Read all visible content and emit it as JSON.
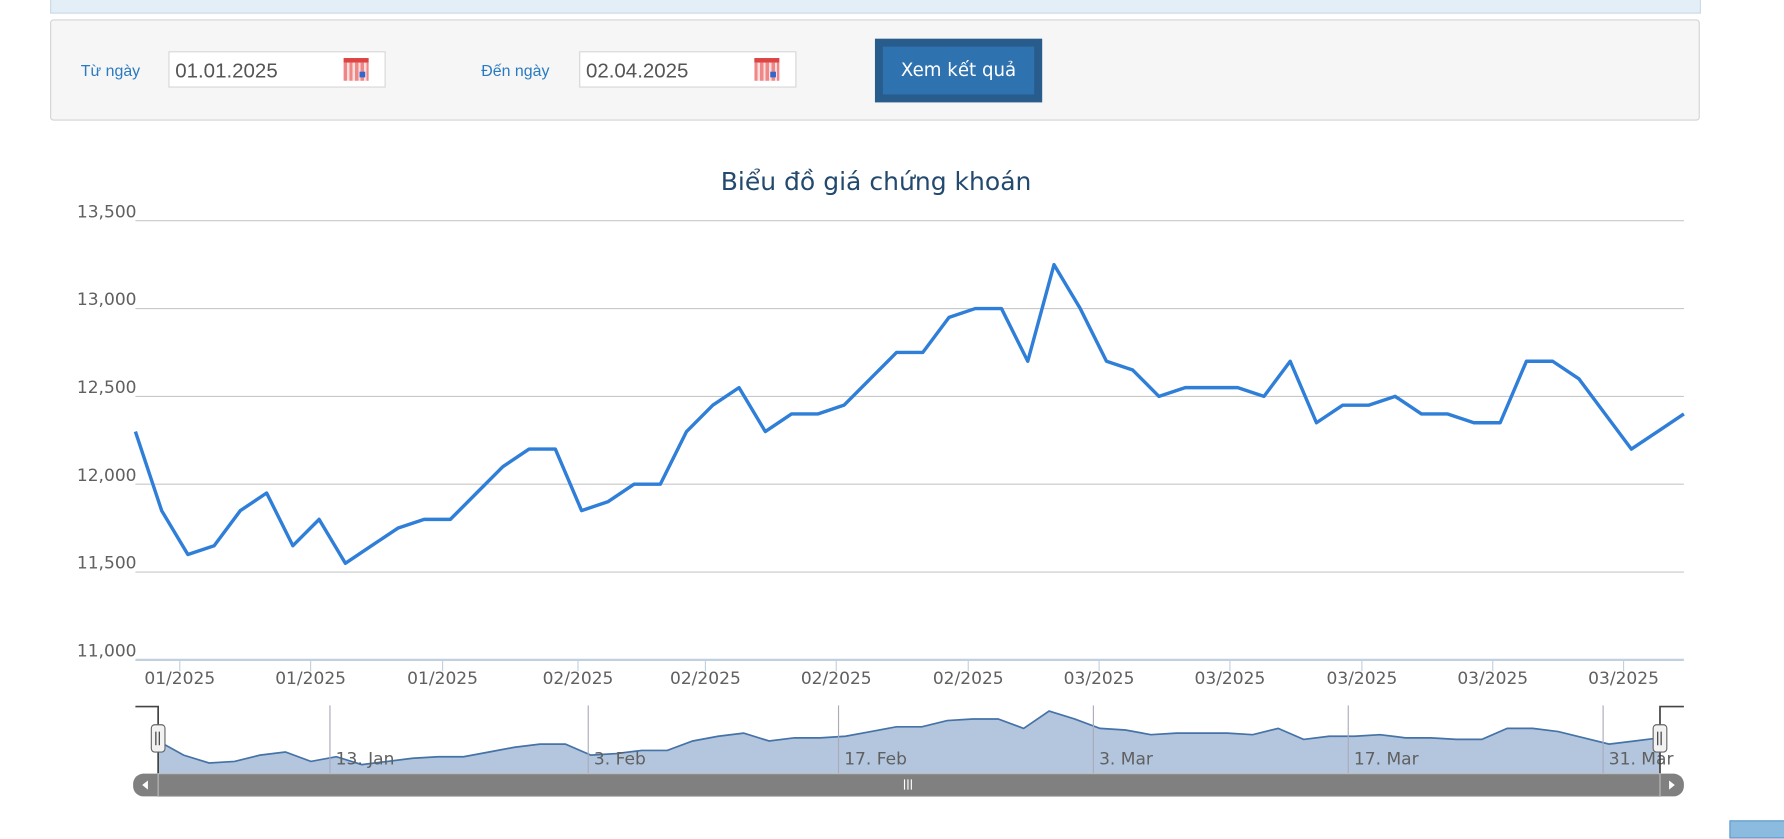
{
  "filter": {
    "from_label": "Từ ngày",
    "from_value": "01.01.2025",
    "to_label": "Đến ngày",
    "to_value": "02.04.2025",
    "submit_label": "Xem kết quả",
    "calendar_icon": "calendar-icon"
  },
  "chart_data": {
    "type": "line",
    "title": "Biểu đồ giá chứng khoán",
    "color": "#2f7ed8",
    "ylim": [
      11000,
      13500
    ],
    "y_ticks": [
      "13,500",
      "13,000",
      "12,500",
      "12,000",
      "11,500",
      "11,000"
    ],
    "y_tick_values": [
      13500,
      13000,
      12500,
      12000,
      11500,
      11000
    ],
    "x_tick_labels": [
      "01/2025",
      "01/2025",
      "01/2025",
      "02/2025",
      "02/2025",
      "02/2025",
      "02/2025",
      "03/2025",
      "03/2025",
      "03/2025",
      "03/2025",
      "03/2025"
    ],
    "grid": true,
    "values": [
      12300,
      11850,
      11600,
      11650,
      11850,
      11950,
      11650,
      11800,
      11550,
      11650,
      11750,
      11800,
      11800,
      11950,
      12100,
      12200,
      12200,
      11850,
      11900,
      12000,
      12000,
      12300,
      12450,
      12550,
      12300,
      12400,
      12400,
      12450,
      12600,
      12750,
      12750,
      12950,
      13000,
      13000,
      12700,
      13250,
      13000,
      12700,
      12650,
      12500,
      12550,
      12550,
      12550,
      12500,
      12700,
      12350,
      12450,
      12450,
      12500,
      12400,
      12400,
      12350,
      12350,
      12700,
      12700,
      12600,
      12400,
      12200,
      12300,
      12400
    ],
    "navigator": {
      "labels": [
        "13. Jan",
        "3. Feb",
        "17. Feb",
        "3. Mar",
        "17. Mar",
        "31. Mar"
      ],
      "fill": "#b3c6dd",
      "line": "#4572a7"
    }
  }
}
